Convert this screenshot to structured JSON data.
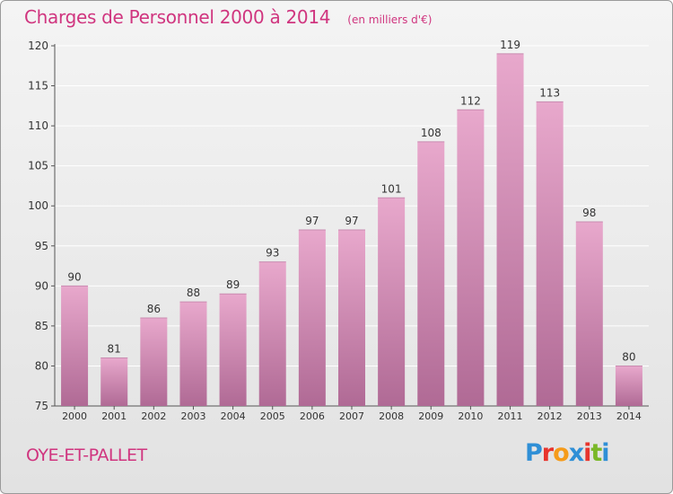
{
  "header": {
    "title": "Charges de Personnel 2000 à 2014",
    "subtitle": "(en milliers d'€)"
  },
  "footer": {
    "commune": "OYE-ET-PALLET",
    "logo_text": "Proxiti"
  },
  "colors": {
    "title": "#d0357f",
    "bar_top": "#e8a8cc",
    "bar_bottom": "#b06a95",
    "logo": [
      "#2f8fd6",
      "#e8342c",
      "#f59b1a",
      "#2f8fd6",
      "#e8342c",
      "#7ab828",
      "#2f8fd6"
    ]
  },
  "chart_data": {
    "type": "bar",
    "categories": [
      "2000",
      "2001",
      "2002",
      "2003",
      "2004",
      "2005",
      "2006",
      "2007",
      "2008",
      "2009",
      "2010",
      "2011",
      "2012",
      "2013",
      "2014"
    ],
    "values": [
      90,
      81,
      86,
      88,
      89,
      93,
      97,
      97,
      101,
      108,
      112,
      119,
      113,
      98,
      80
    ],
    "ylim": [
      75,
      120
    ],
    "yticks": [
      75,
      80,
      85,
      90,
      95,
      100,
      105,
      110,
      115,
      120
    ],
    "grid": true,
    "data_labels": true
  }
}
